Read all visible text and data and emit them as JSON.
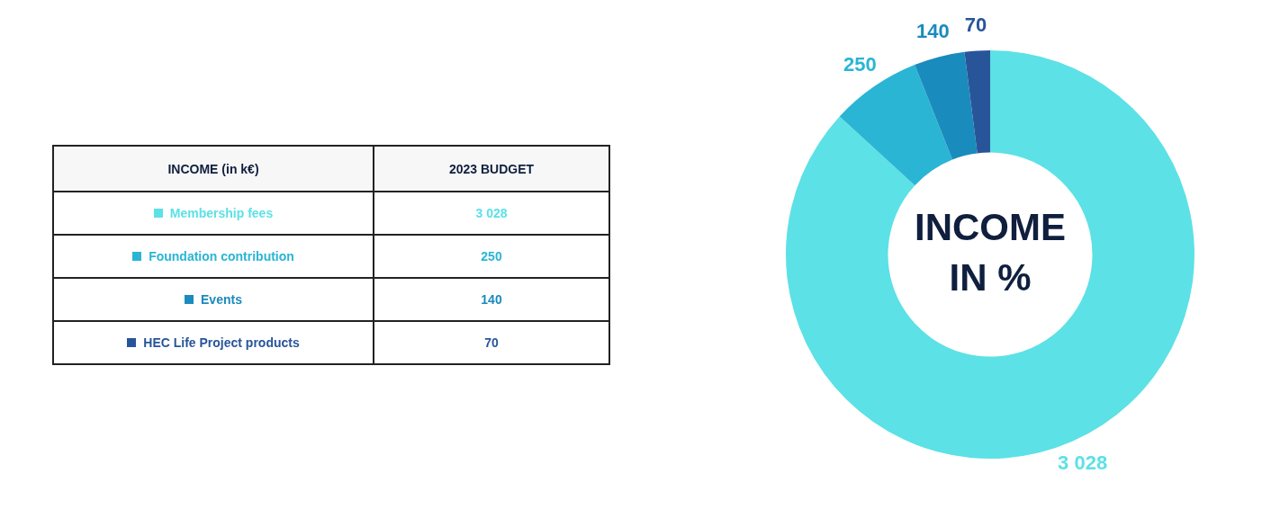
{
  "chart_data": {
    "type": "donut",
    "title": "INCOME IN %",
    "categories": [
      "Membership fees",
      "Foundation contribution",
      "Events",
      "HEC Life Project products"
    ],
    "values": [
      3028,
      250,
      140,
      70
    ],
    "colors": [
      "#5ce1e6",
      "#2bb5d4",
      "#1a8bbd",
      "#28559a"
    ],
    "value_labels": [
      "3 028",
      "250",
      "140",
      "70"
    ],
    "annotations": [
      "INCOME (in k€)",
      "2023 BUDGET"
    ],
    "legend": "left"
  }
}
